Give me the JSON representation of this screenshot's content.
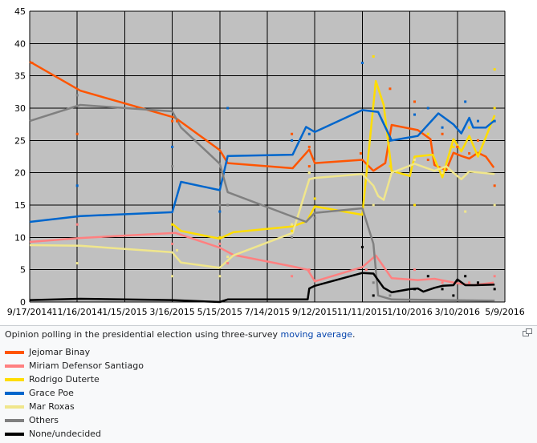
{
  "caption": {
    "prefix": "Opinion polling in the presidential election using three-survey ",
    "link": "moving average",
    "suffix": "."
  },
  "enlarge_icon": "enlarge-icon",
  "chart_data": {
    "type": "line",
    "title": "",
    "xlabel": "",
    "ylabel": "",
    "x_ticks": [
      "9/17/2014",
      "11/16/2014",
      "1/15/2015",
      "3/16/2015",
      "5/15/2015",
      "7/14/2015",
      "9/12/2015",
      "11/11/2015",
      "1/10/2016",
      "3/10/2016",
      "5/9/2016"
    ],
    "xlim": [
      "2014-09-17",
      "2016-05-09"
    ],
    "ylim": [
      0,
      45
    ],
    "y_ticks": [
      0,
      5,
      10,
      15,
      20,
      25,
      30,
      35,
      40,
      45
    ],
    "grid": true,
    "plot_background": "#c0c0c0",
    "legend_position": "below",
    "series": [
      {
        "name": "Jejomar Binay",
        "color": "#ff5500",
        "line": [
          [
            "2014-09-17",
            37.2
          ],
          [
            "2014-11-20",
            32.7
          ],
          [
            "2015-03-20",
            28.5
          ],
          [
            "2015-05-15",
            23.5
          ],
          [
            "2015-05-25",
            21.5
          ],
          [
            "2015-08-15",
            20.7
          ],
          [
            "2015-09-05",
            23.6
          ],
          [
            "2015-09-12",
            21.5
          ],
          [
            "2015-11-11",
            22.0
          ],
          [
            "2015-11-25",
            20.3
          ],
          [
            "2015-12-10",
            21.5
          ],
          [
            "2015-12-18",
            27.4
          ],
          [
            "2016-01-20",
            26.6
          ],
          [
            "2016-02-05",
            25.2
          ],
          [
            "2016-02-10",
            21.2
          ],
          [
            "2016-02-25",
            20.4
          ],
          [
            "2016-03-05",
            23.1
          ],
          [
            "2016-03-15",
            22.6
          ],
          [
            "2016-03-25",
            22.2
          ],
          [
            "2016-04-05",
            23.1
          ],
          [
            "2016-04-15",
            22.5
          ],
          [
            "2016-04-25",
            20.8
          ]
        ],
        "points": [
          [
            "2014-09-20",
            37
          ],
          [
            "2014-11-16",
            26
          ],
          [
            "2015-03-16",
            28
          ],
          [
            "2015-03-22",
            28
          ],
          [
            "2015-08-14",
            26
          ],
          [
            "2015-09-05",
            24
          ],
          [
            "2015-09-05",
            21
          ],
          [
            "2015-11-09",
            23
          ],
          [
            "2015-12-16",
            33
          ],
          [
            "2016-01-16",
            31
          ],
          [
            "2016-02-02",
            22
          ],
          [
            "2016-02-20",
            26
          ],
          [
            "2016-03-10",
            24
          ],
          [
            "2016-03-25",
            23
          ],
          [
            "2016-04-05",
            25
          ],
          [
            "2016-04-26",
            18
          ]
        ]
      },
      {
        "name": "Miriam Defensor Santiago",
        "color": "#ff8080",
        "line": [
          [
            "2014-09-17",
            9.3
          ],
          [
            "2014-11-20",
            9.9
          ],
          [
            "2015-03-20",
            10.7
          ],
          [
            "2015-05-15",
            8.4
          ],
          [
            "2015-06-01",
            7.3
          ],
          [
            "2015-08-15",
            5.5
          ],
          [
            "2015-09-03",
            5.0
          ],
          [
            "2015-09-12",
            3.2
          ],
          [
            "2015-11-11",
            5.4
          ],
          [
            "2015-11-28",
            7.2
          ],
          [
            "2015-12-18",
            3.7
          ],
          [
            "2016-01-20",
            3.4
          ],
          [
            "2016-02-10",
            3.6
          ],
          [
            "2016-03-10",
            2.9
          ],
          [
            "2016-03-30",
            2.6
          ],
          [
            "2016-04-25",
            3.0
          ]
        ],
        "points": [
          [
            "2014-11-16",
            12
          ],
          [
            "2015-03-16",
            9
          ],
          [
            "2015-05-15",
            9
          ],
          [
            "2015-05-25",
            6
          ],
          [
            "2015-08-14",
            4
          ],
          [
            "2015-09-05",
            5
          ],
          [
            "2015-11-16",
            5
          ],
          [
            "2016-01-16",
            5
          ],
          [
            "2016-02-20",
            3
          ],
          [
            "2016-03-25",
            3
          ],
          [
            "2016-04-26",
            4
          ]
        ]
      },
      {
        "name": "Rodrigo Duterte",
        "color": "#ffdd00",
        "line": [
          [
            "2015-03-16",
            12.1
          ],
          [
            "2015-03-27",
            11.0
          ],
          [
            "2015-05-15",
            9.8
          ],
          [
            "2015-06-01",
            10.8
          ],
          [
            "2015-08-15",
            11.7
          ],
          [
            "2015-09-02",
            12.5
          ],
          [
            "2015-09-12",
            14.8
          ],
          [
            "2015-11-11",
            13.5
          ],
          [
            "2015-11-28",
            34.2
          ],
          [
            "2015-12-08",
            30.5
          ],
          [
            "2015-12-18",
            20.3
          ],
          [
            "2016-01-10",
            19.5
          ],
          [
            "2016-01-16",
            22.5
          ],
          [
            "2016-02-08",
            22.8
          ],
          [
            "2016-02-20",
            19.3
          ],
          [
            "2016-03-05",
            25.2
          ],
          [
            "2016-03-15",
            23.3
          ],
          [
            "2016-03-25",
            25.7
          ],
          [
            "2016-04-05",
            22.5
          ],
          [
            "2016-04-26",
            28.9
          ]
        ],
        "points": [
          [
            "2015-03-16",
            12
          ],
          [
            "2015-05-15",
            10
          ],
          [
            "2015-08-14",
            11
          ],
          [
            "2015-09-05",
            20
          ],
          [
            "2015-09-12",
            16
          ],
          [
            "2015-11-25",
            38
          ],
          [
            "2015-12-16",
            21
          ],
          [
            "2016-01-16",
            15
          ],
          [
            "2016-02-02",
            26
          ],
          [
            "2016-03-05",
            24
          ],
          [
            "2016-03-25",
            27
          ],
          [
            "2016-04-26",
            36
          ],
          [
            "2016-04-26",
            30
          ]
        ]
      },
      {
        "name": "Grace Poe",
        "color": "#0066cc",
        "line": [
          [
            "2014-09-17",
            12.4
          ],
          [
            "2014-11-20",
            13.3
          ],
          [
            "2015-03-16",
            13.9
          ],
          [
            "2015-03-27",
            18.6
          ],
          [
            "2015-05-15",
            17.3
          ],
          [
            "2015-05-25",
            22.6
          ],
          [
            "2015-08-15",
            22.8
          ],
          [
            "2015-09-01",
            27.1
          ],
          [
            "2015-09-12",
            26.3
          ],
          [
            "2015-11-11",
            29.7
          ],
          [
            "2015-12-01",
            29.4
          ],
          [
            "2015-12-18",
            25.0
          ],
          [
            "2016-01-20",
            25.7
          ],
          [
            "2016-02-15",
            29.2
          ],
          [
            "2016-03-05",
            27.5
          ],
          [
            "2016-03-15",
            26.1
          ],
          [
            "2016-03-25",
            28.5
          ],
          [
            "2016-03-30",
            27.0
          ],
          [
            "2016-04-15",
            27.0
          ],
          [
            "2016-04-26",
            28.1
          ]
        ],
        "points": [
          [
            "2014-11-16",
            18
          ],
          [
            "2015-03-16",
            24
          ],
          [
            "2015-05-15",
            14
          ],
          [
            "2015-05-25",
            30
          ],
          [
            "2015-08-14",
            25
          ],
          [
            "2015-09-05",
            26
          ],
          [
            "2015-11-11",
            37
          ],
          [
            "2015-12-16",
            25
          ],
          [
            "2016-01-16",
            29
          ],
          [
            "2016-02-02",
            30
          ],
          [
            "2016-02-20",
            27
          ],
          [
            "2016-03-20",
            31
          ],
          [
            "2016-04-05",
            28
          ],
          [
            "2016-04-26",
            28
          ]
        ]
      },
      {
        "name": "Mar Roxas",
        "color": "#f0e68c",
        "line": [
          [
            "2014-09-17",
            8.8
          ],
          [
            "2014-11-20",
            8.7
          ],
          [
            "2015-03-16",
            7.7
          ],
          [
            "2015-03-27",
            6.1
          ],
          [
            "2015-05-15",
            5.3
          ],
          [
            "2015-06-01",
            7.2
          ],
          [
            "2015-08-15",
            10.7
          ],
          [
            "2015-09-05",
            19.0
          ],
          [
            "2015-09-12",
            19.2
          ],
          [
            "2015-11-11",
            19.8
          ],
          [
            "2015-11-25",
            18.0
          ],
          [
            "2015-12-01",
            16.4
          ],
          [
            "2015-12-08",
            15.8
          ],
          [
            "2015-12-18",
            20.0
          ],
          [
            "2016-01-10",
            21.1
          ],
          [
            "2016-01-16",
            21.4
          ],
          [
            "2016-02-10",
            20.3
          ],
          [
            "2016-02-25",
            21.0
          ],
          [
            "2016-03-05",
            20.0
          ],
          [
            "2016-03-15",
            19.0
          ],
          [
            "2016-03-25",
            20.2
          ],
          [
            "2016-04-26",
            19.8
          ]
        ],
        "points": [
          [
            "2014-11-16",
            6
          ],
          [
            "2015-03-16",
            4
          ],
          [
            "2015-03-22",
            8
          ],
          [
            "2015-05-15",
            4
          ],
          [
            "2015-05-25",
            7
          ],
          [
            "2015-08-14",
            12
          ],
          [
            "2015-09-05",
            20
          ],
          [
            "2015-11-25",
            15
          ],
          [
            "2016-01-16",
            22
          ],
          [
            "2016-02-20",
            20
          ],
          [
            "2016-03-20",
            14
          ],
          [
            "2016-04-26",
            15
          ]
        ]
      },
      {
        "name": "Others",
        "color": "#808080",
        "line": [
          [
            "2014-09-17",
            28.0
          ],
          [
            "2014-11-20",
            30.5
          ],
          [
            "2015-03-16",
            29.5
          ],
          [
            "2015-03-27",
            27.0
          ],
          [
            "2015-05-15",
            21.4
          ],
          [
            "2015-05-25",
            17.0
          ],
          [
            "2015-08-15",
            13.2
          ],
          [
            "2015-09-01",
            12.4
          ],
          [
            "2015-09-12",
            13.8
          ],
          [
            "2015-11-11",
            14.5
          ],
          [
            "2015-11-25",
            9.0
          ],
          [
            "2015-12-01",
            1.0
          ],
          [
            "2015-12-18",
            0.4
          ],
          [
            "2016-04-26",
            0.2
          ]
        ],
        "points": [
          [
            "2014-11-16",
            32
          ],
          [
            "2015-03-16",
            21
          ],
          [
            "2015-05-15",
            15
          ],
          [
            "2015-05-25",
            15
          ],
          [
            "2015-08-14",
            10
          ],
          [
            "2015-09-12",
            13
          ],
          [
            "2015-11-25",
            3
          ],
          [
            "2015-12-16",
            1
          ]
        ]
      },
      {
        "name": "None/undecided",
        "color": "#000000",
        "line": [
          [
            "2014-09-17",
            0.3
          ],
          [
            "2014-11-20",
            0.5
          ],
          [
            "2015-03-16",
            0.3
          ],
          [
            "2015-05-15",
            0.0
          ],
          [
            "2015-05-25",
            0.4
          ],
          [
            "2015-08-15",
            0.4
          ],
          [
            "2015-09-03",
            0.4
          ],
          [
            "2015-09-05",
            2.1
          ],
          [
            "2015-09-12",
            2.5
          ],
          [
            "2015-11-11",
            4.5
          ],
          [
            "2015-11-25",
            4.4
          ],
          [
            "2015-12-08",
            2.2
          ],
          [
            "2015-12-18",
            1.5
          ],
          [
            "2016-01-10",
            2.0
          ],
          [
            "2016-01-20",
            2.1
          ],
          [
            "2016-01-27",
            1.6
          ],
          [
            "2016-02-10",
            2.2
          ],
          [
            "2016-02-20",
            2.5
          ],
          [
            "2016-03-05",
            2.6
          ],
          [
            "2016-03-10",
            3.5
          ],
          [
            "2016-03-20",
            2.6
          ],
          [
            "2016-04-01",
            2.6
          ],
          [
            "2016-04-26",
            2.7
          ]
        ],
        "points": [
          [
            "2015-11-11",
            8.5
          ],
          [
            "2015-11-25",
            1
          ],
          [
            "2016-01-16",
            2
          ],
          [
            "2016-02-02",
            4
          ],
          [
            "2016-02-20",
            2
          ],
          [
            "2016-03-05",
            1
          ],
          [
            "2016-03-20",
            4
          ],
          [
            "2016-04-05",
            3
          ],
          [
            "2016-04-26",
            2
          ]
        ]
      }
    ]
  }
}
